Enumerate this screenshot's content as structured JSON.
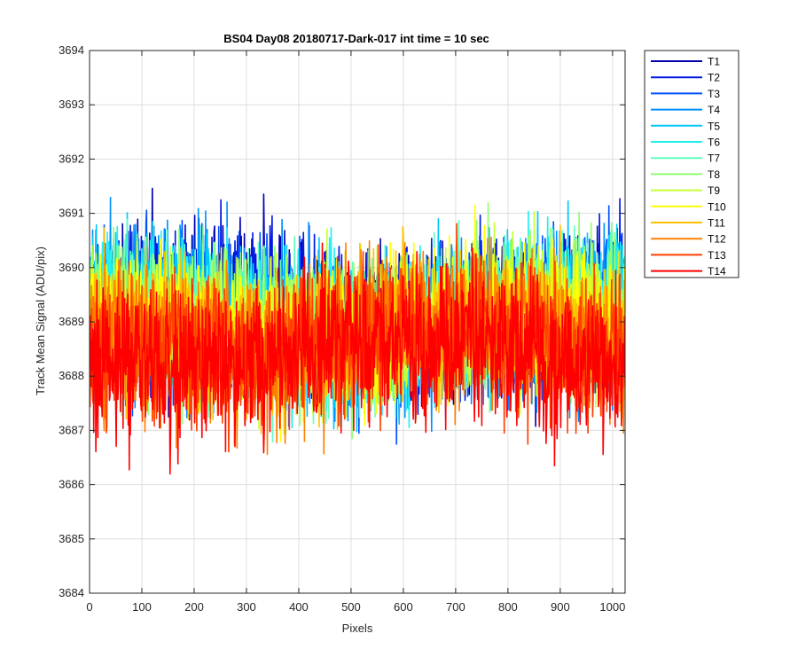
{
  "chart_data": {
    "type": "line",
    "title": "BS04 Day08 20180717-Dark-017 int time = 10 sec",
    "xlabel": "Pixels",
    "ylabel": "Track Mean Signal (ADU/pix)",
    "xlim": [
      0,
      1024
    ],
    "ylim": [
      3684,
      3694
    ],
    "xticks": [
      0,
      100,
      200,
      300,
      400,
      500,
      600,
      700,
      800,
      900,
      1000
    ],
    "yticks": [
      3684,
      3685,
      3686,
      3687,
      3688,
      3689,
      3690,
      3691,
      3692,
      3693,
      3694
    ],
    "grid": true,
    "legend_position": "outside-top-right",
    "x": {
      "start": 1,
      "end": 1024,
      "step": 1
    },
    "series": [
      {
        "name": "T1",
        "color": "#0000b0",
        "mean": 3689.1,
        "spread": 1.15
      },
      {
        "name": "T2",
        "color": "#0018e0",
        "mean": 3689.1,
        "spread": 1.15
      },
      {
        "name": "T3",
        "color": "#0050ff",
        "mean": 3689.0,
        "spread": 1.15
      },
      {
        "name": "T4",
        "color": "#0090ff",
        "mean": 3689.0,
        "spread": 1.2
      },
      {
        "name": "T5",
        "color": "#00c8ff",
        "mean": 3689.0,
        "spread": 1.15
      },
      {
        "name": "T6",
        "color": "#20f0f0",
        "mean": 3689.1,
        "spread": 1.1
      },
      {
        "name": "T7",
        "color": "#60ffc0",
        "mean": 3689.0,
        "spread": 1.1
      },
      {
        "name": "T8",
        "color": "#90ff70",
        "mean": 3689.0,
        "spread": 1.1
      },
      {
        "name": "T9",
        "color": "#c8ff30",
        "mean": 3688.9,
        "spread": 1.1
      },
      {
        "name": "T10",
        "color": "#ffff00",
        "mean": 3688.9,
        "spread": 1.1
      },
      {
        "name": "T11",
        "color": "#ffc000",
        "mean": 3688.8,
        "spread": 1.1
      },
      {
        "name": "T12",
        "color": "#ff8000",
        "mean": 3688.7,
        "spread": 1.1
      },
      {
        "name": "T13",
        "color": "#ff4000",
        "mean": 3688.6,
        "spread": 1.1
      },
      {
        "name": "T14",
        "color": "#ff0000",
        "mean": 3688.4,
        "spread": 1.15
      }
    ]
  }
}
